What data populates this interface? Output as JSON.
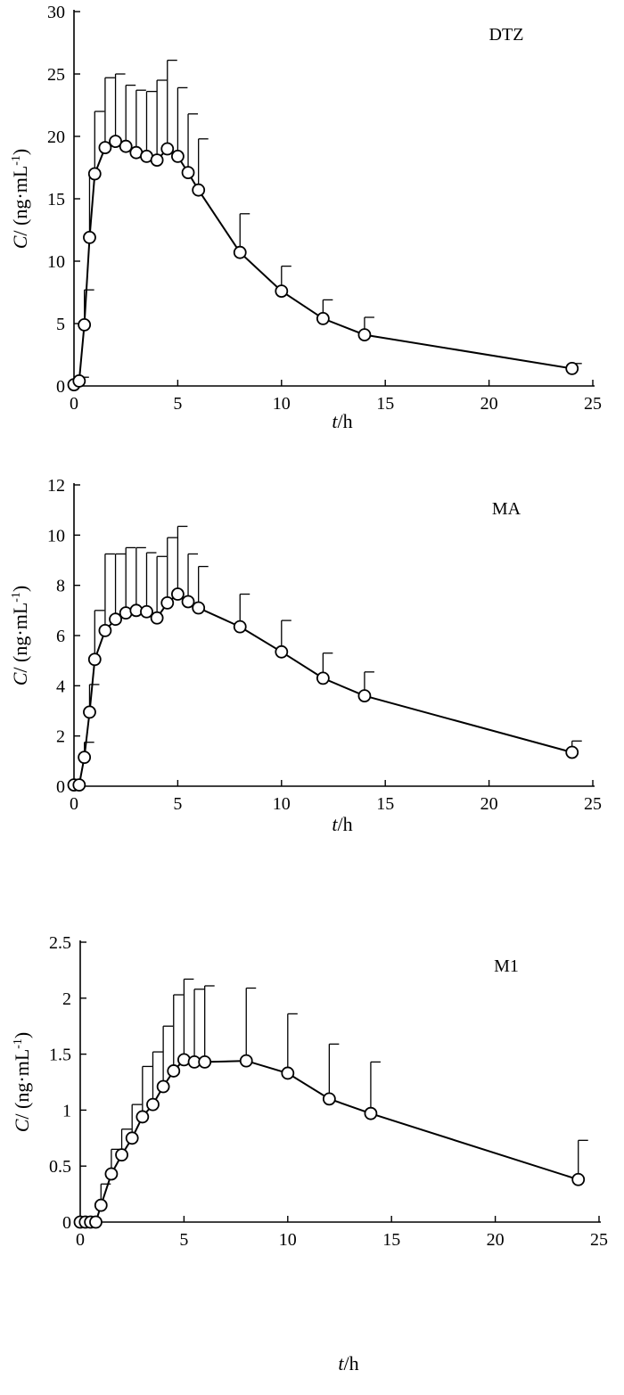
{
  "chart_data": [
    {
      "type": "line",
      "title": "",
      "label": "DTZ",
      "xlabel_var": "t",
      "xlabel_unit": "/h",
      "ylabel_var": "C",
      "ylabel_unit": "/ (ng·mL",
      "ylabel_sup": "-1",
      "ylabel_close": ")",
      "xlim": [
        0,
        25
      ],
      "ylim": [
        0,
        30
      ],
      "xticks": [
        0,
        5,
        10,
        15,
        20,
        25
      ],
      "yticks": [
        0,
        5,
        10,
        15,
        20,
        25,
        30
      ],
      "xtick_labels": [
        "0",
        "5",
        "10",
        "15",
        "20",
        "25"
      ],
      "ytick_labels": [
        "0",
        "5",
        "10",
        "15",
        "20",
        "25",
        "30"
      ],
      "grid": false,
      "x": [
        0,
        0.25,
        0.5,
        0.75,
        1,
        1.5,
        2,
        2.5,
        3,
        3.5,
        4,
        4.5,
        5,
        5.5,
        6,
        8,
        10,
        12,
        14,
        24
      ],
      "y": [
        0.1,
        0.4,
        4.9,
        11.9,
        17.0,
        19.1,
        19.6,
        19.2,
        18.7,
        18.4,
        18.1,
        19.0,
        18.4,
        17.1,
        15.7,
        10.7,
        7.6,
        5.4,
        4.1,
        1.4
      ],
      "error": [
        0,
        0.3,
        2.8,
        5.2,
        5.0,
        5.6,
        5.4,
        4.9,
        5.0,
        5.2,
        6.4,
        7.1,
        5.5,
        4.7,
        4.1,
        3.1,
        2.0,
        1.5,
        1.4,
        0.4
      ]
    },
    {
      "type": "line",
      "title": "",
      "label": "MA",
      "xlabel_var": "t",
      "xlabel_unit": "/h",
      "ylabel_var": "C",
      "ylabel_unit": "/ (ng·mL",
      "ylabel_sup": "-1",
      "ylabel_close": ")",
      "xlim": [
        0,
        25
      ],
      "ylim": [
        0,
        12
      ],
      "xticks": [
        0,
        5,
        10,
        15,
        20,
        25
      ],
      "yticks": [
        0,
        2,
        4,
        6,
        8,
        10,
        12
      ],
      "xtick_labels": [
        "0",
        "5",
        "10",
        "15",
        "20",
        "25"
      ],
      "ytick_labels": [
        "0",
        "2",
        "4",
        "6",
        "8",
        "10",
        "12"
      ],
      "grid": false,
      "x": [
        0,
        0.25,
        0.5,
        0.75,
        1,
        1.5,
        2,
        2.5,
        3,
        3.5,
        4,
        4.5,
        5,
        5.5,
        6,
        8,
        10,
        12,
        14,
        24
      ],
      "y": [
        0.05,
        0.05,
        1.15,
        2.95,
        5.05,
        6.2,
        6.65,
        6.9,
        7.0,
        6.95,
        6.7,
        7.3,
        7.65,
        7.35,
        7.1,
        6.35,
        5.35,
        4.3,
        3.6,
        1.35
      ],
      "error": [
        0,
        0,
        0.6,
        1.1,
        1.95,
        3.05,
        2.6,
        2.6,
        2.5,
        2.35,
        2.45,
        2.6,
        2.7,
        1.9,
        1.65,
        1.3,
        1.25,
        1.0,
        0.95,
        0.45
      ]
    },
    {
      "type": "line",
      "title": "",
      "label": "M1",
      "xlabel_var": "t",
      "xlabel_unit": "/h",
      "ylabel_var": "C",
      "ylabel_unit": "/ (ng·mL",
      "ylabel_sup": "-1",
      "ylabel_close": ")",
      "xlim": [
        0,
        25
      ],
      "ylim": [
        0,
        2.5
      ],
      "xticks": [
        0,
        5,
        10,
        15,
        20,
        25
      ],
      "yticks": [
        0,
        0.5,
        1,
        1.5,
        2,
        2.5
      ],
      "xtick_labels": [
        "0",
        "5",
        "10",
        "15",
        "20",
        "25"
      ],
      "ytick_labels": [
        "0",
        "0.5",
        "1",
        "1.5",
        "2",
        "2.5"
      ],
      "grid": false,
      "x": [
        0,
        0.25,
        0.5,
        0.75,
        1,
        1.5,
        2,
        2.5,
        3,
        3.5,
        4,
        4.5,
        5,
        5.5,
        6,
        8,
        10,
        12,
        14,
        24
      ],
      "y": [
        0,
        0,
        0,
        0,
        0.15,
        0.43,
        0.6,
        0.75,
        0.94,
        1.05,
        1.21,
        1.35,
        1.45,
        1.43,
        1.43,
        1.44,
        1.33,
        1.1,
        0.97,
        0.38
      ],
      "error": [
        0,
        0,
        0,
        0,
        0.19,
        0.22,
        0.23,
        0.3,
        0.45,
        0.47,
        0.54,
        0.68,
        0.72,
        0.65,
        0.68,
        0.65,
        0.53,
        0.49,
        0.46,
        0.35
      ]
    }
  ]
}
